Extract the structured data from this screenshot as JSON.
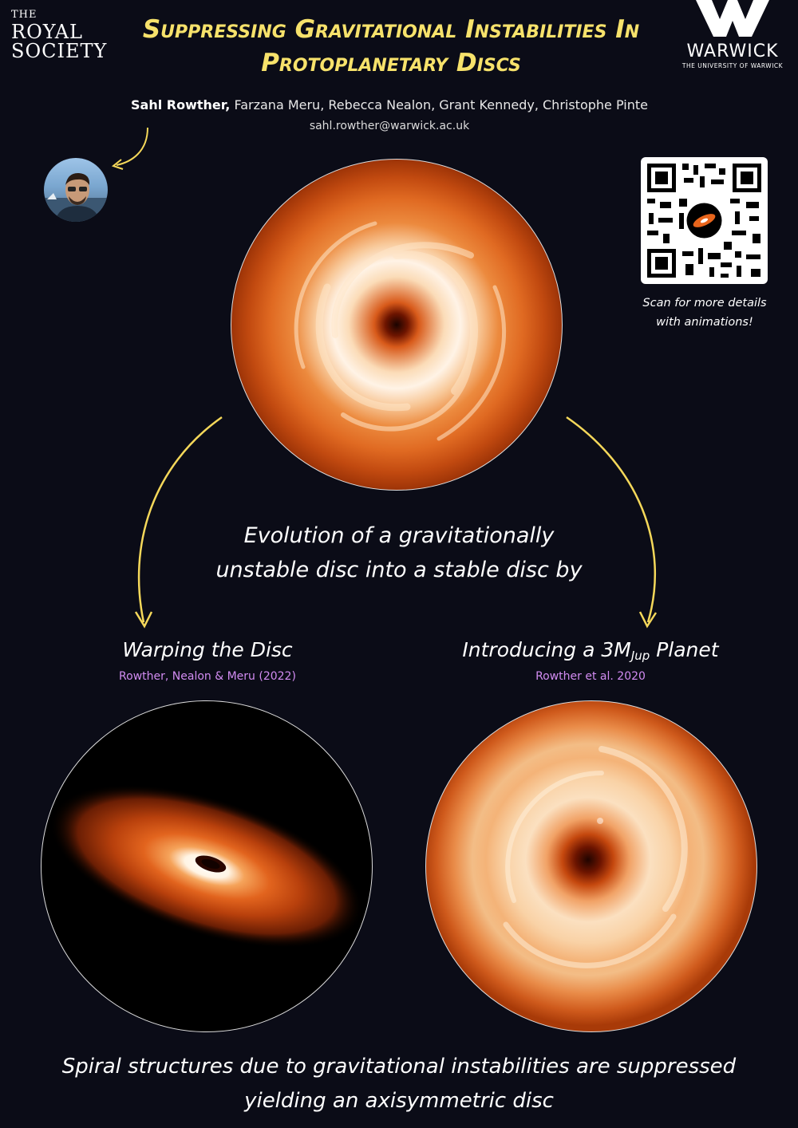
{
  "logos": {
    "royal_society": {
      "line1": "THE",
      "line2": "ROYAL",
      "line3": "SOCIETY"
    },
    "warwick": {
      "name": "WARWICK",
      "sub": "THE UNIVERSITY OF WARWICK"
    }
  },
  "title": {
    "line1": "Suppressing Gravitational Instabilities In",
    "line2": "Protoplanetary Discs"
  },
  "authors": {
    "lead": "Sahl Rowther,",
    "others": " Farzana Meru, Rebecca Nealon, Grant Kennedy, Christophe Pinte",
    "email": "sahl.rowther@warwick.ac.uk"
  },
  "qr": {
    "caption_line1": "Scan for more details",
    "caption_line2": "with animations!"
  },
  "evolution": {
    "line1": "Evolution of a gravitationally",
    "line2": "unstable disc into a stable disc by"
  },
  "left_panel": {
    "heading": "Warping the Disc",
    "ref": "Rowther, Nealon & Meru (2022)"
  },
  "right_panel": {
    "heading_pre": "Introducing a 3M",
    "heading_sub": "Jup",
    "heading_post": " Planet",
    "ref": "Rowther et al. 2020"
  },
  "conclusion": {
    "line1": "Spiral structures due to gravitational instabilities are suppressed",
    "line2": "yielding an axisymmetric disc"
  },
  "colors": {
    "title": "#f7e26b",
    "reference": "#d28cf2",
    "arrow": "#f5d85a",
    "background": "#0b0c17"
  }
}
